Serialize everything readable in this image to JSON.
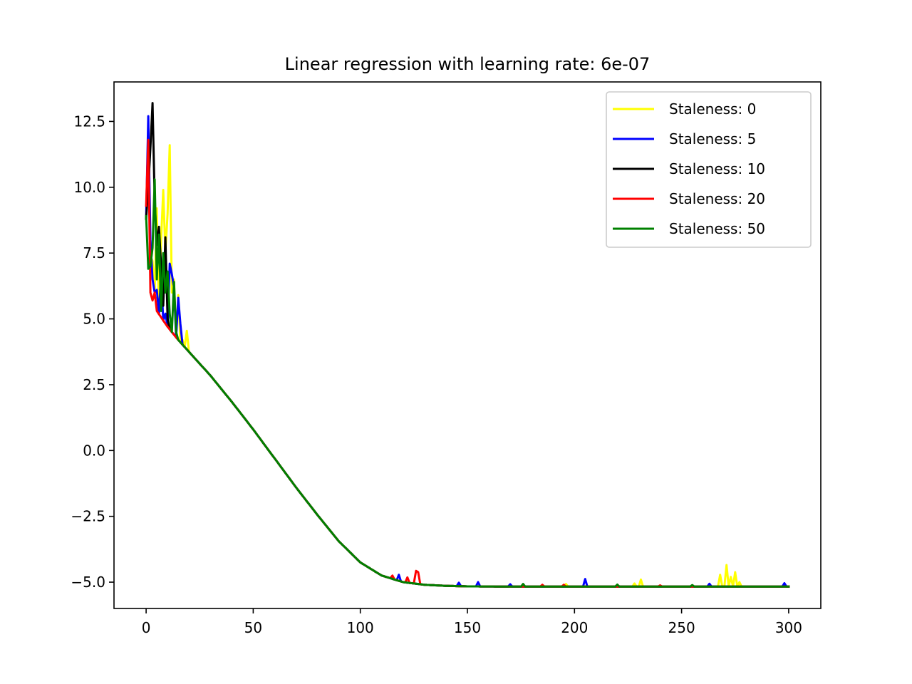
{
  "chart_data": {
    "type": "line",
    "title": "Linear regression with learning rate: 6e-07",
    "xlabel": "",
    "ylabel": "",
    "xlim": [
      -15,
      315
    ],
    "ylim": [
      -6.0,
      14.0
    ],
    "x_ticks": [
      0,
      50,
      100,
      150,
      200,
      250,
      300
    ],
    "x_tick_labels": [
      "0",
      "50",
      "100",
      "150",
      "200",
      "250",
      "300"
    ],
    "y_ticks": [
      -5.0,
      -2.5,
      0.0,
      2.5,
      5.0,
      7.5,
      10.0,
      12.5
    ],
    "y_tick_labels": [
      "−5.0",
      "−2.5",
      "0.0",
      "2.5",
      "5.0",
      "7.5",
      "10.0",
      "12.5"
    ],
    "grid": false,
    "legend_position": "top-right",
    "base_curve": {
      "x": [
        0,
        5,
        10,
        15,
        20,
        30,
        40,
        50,
        60,
        70,
        80,
        90,
        100,
        110,
        120,
        130,
        140,
        150,
        175,
        200,
        250,
        300
      ],
      "y": [
        8.8,
        5.3,
        4.7,
        4.2,
        3.75,
        2.85,
        1.85,
        0.8,
        -0.3,
        -1.4,
        -2.45,
        -3.45,
        -4.25,
        -4.75,
        -5.0,
        -5.1,
        -5.14,
        -5.16,
        -5.17,
        -5.17,
        -5.17,
        -5.17
      ]
    },
    "series": [
      {
        "name": "Staleness: 0",
        "color": "#ffff00",
        "spikes": [
          [
            1,
            11.5
          ],
          [
            3,
            7.2
          ],
          [
            5,
            9.2
          ],
          [
            7,
            8.0
          ],
          [
            8,
            9.9
          ],
          [
            9,
            7.5
          ],
          [
            10,
            9.0
          ],
          [
            11,
            11.6
          ],
          [
            12,
            6.0
          ],
          [
            13,
            6.5
          ],
          [
            15,
            5.9
          ],
          [
            17,
            4.2
          ],
          [
            19,
            4.55
          ],
          [
            196,
            -5.07
          ],
          [
            228,
            -5.05
          ],
          [
            231,
            -4.9
          ],
          [
            268,
            -4.72
          ],
          [
            271,
            -4.35
          ],
          [
            273,
            -4.8
          ],
          [
            275,
            -4.62
          ],
          [
            277,
            -5.0
          ]
        ]
      },
      {
        "name": "Staleness: 5",
        "color": "#0000ff",
        "spikes": [
          [
            1,
            12.7
          ],
          [
            2,
            8.0
          ],
          [
            3,
            6.5
          ],
          [
            5,
            6.1
          ],
          [
            7,
            6.7
          ],
          [
            9,
            5.2
          ],
          [
            11,
            7.1
          ],
          [
            12,
            6.7
          ],
          [
            13,
            6.2
          ],
          [
            15,
            5.8
          ],
          [
            16,
            4.8
          ],
          [
            118,
            -4.72
          ],
          [
            146,
            -5.02
          ],
          [
            155,
            -5.0
          ],
          [
            170,
            -5.08
          ],
          [
            205,
            -4.88
          ],
          [
            263,
            -5.06
          ],
          [
            298,
            -5.04
          ]
        ]
      },
      {
        "name": "Staleness: 10",
        "color": "#000000",
        "spikes": [
          [
            1,
            10.0
          ],
          [
            2,
            11.5
          ],
          [
            3,
            13.2
          ],
          [
            4,
            9.5
          ],
          [
            5,
            7.8
          ],
          [
            6,
            8.5
          ],
          [
            7,
            7.0
          ],
          [
            8,
            5.5
          ],
          [
            9,
            8.1
          ],
          [
            10,
            5.0
          ]
        ]
      },
      {
        "name": "Staleness: 20",
        "color": "#ff0000",
        "spikes": [
          [
            0,
            9.3
          ],
          [
            1,
            11.8
          ],
          [
            2,
            6.0
          ],
          [
            3,
            5.7
          ],
          [
            115,
            -4.75
          ],
          [
            122,
            -4.82
          ],
          [
            126,
            -4.57
          ],
          [
            127,
            -4.62
          ],
          [
            185,
            -5.1
          ],
          [
            195,
            -5.1
          ],
          [
            240,
            -5.12
          ]
        ]
      },
      {
        "name": "Staleness: 50",
        "color": "#008000",
        "spikes": [
          [
            0,
            8.9
          ],
          [
            1,
            6.9
          ],
          [
            2,
            7.0
          ],
          [
            3,
            7.7
          ],
          [
            4,
            10.3
          ],
          [
            5,
            6.5
          ],
          [
            6,
            8.2
          ],
          [
            7,
            5.3
          ],
          [
            8,
            7.5
          ],
          [
            9,
            6.0
          ],
          [
            10,
            6.8
          ],
          [
            11,
            5.2
          ],
          [
            13,
            6.4
          ],
          [
            14,
            4.5
          ],
          [
            176,
            -5.07
          ],
          [
            220,
            -5.09
          ],
          [
            255,
            -5.11
          ]
        ]
      }
    ]
  }
}
